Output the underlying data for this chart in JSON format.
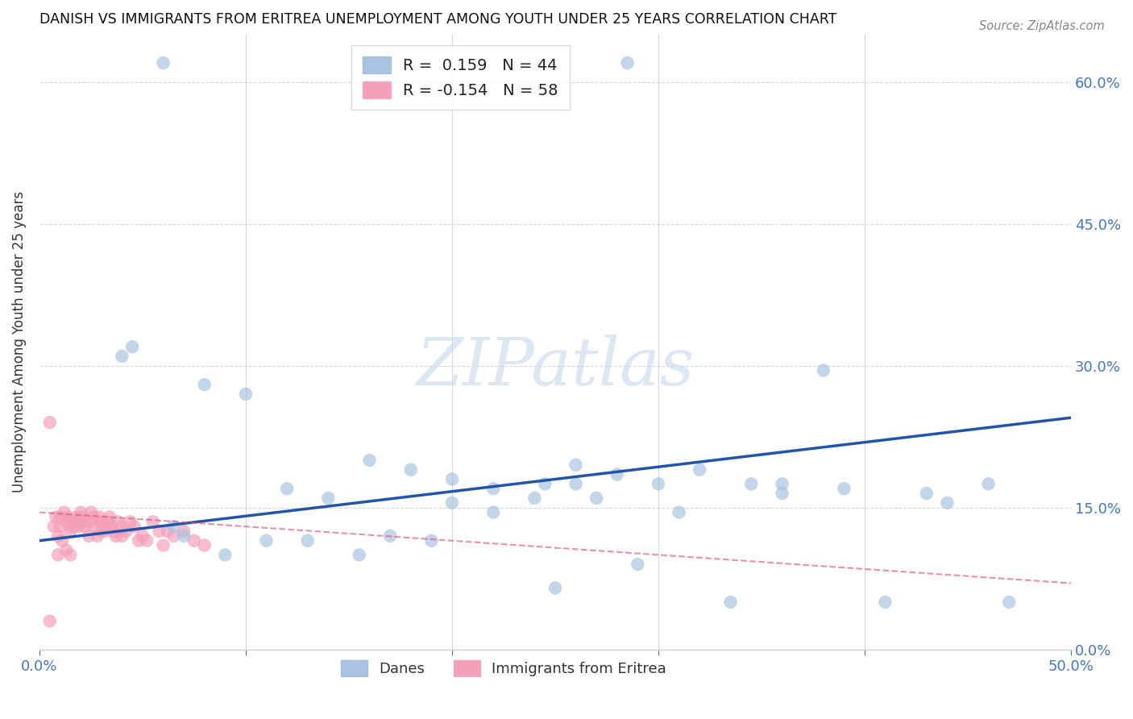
{
  "title": "DANISH VS IMMIGRANTS FROM ERITREA UNEMPLOYMENT AMONG YOUTH UNDER 25 YEARS CORRELATION CHART",
  "source": "Source: ZipAtlas.com",
  "ylabel": "Unemployment Among Youth under 25 years",
  "xlim": [
    0.0,
    0.5
  ],
  "ylim": [
    0.0,
    0.65
  ],
  "xtick_vals": [
    0.0,
    0.1,
    0.2,
    0.3,
    0.4,
    0.5
  ],
  "xtick_labels": [
    "0.0%",
    "",
    "",
    "",
    "",
    "50.0%"
  ],
  "ytick_vals": [
    0.0,
    0.15,
    0.3,
    0.45,
    0.6
  ],
  "ytick_labels_right": [
    "0.0%",
    "15.0%",
    "30.0%",
    "45.0%",
    "60.0%"
  ],
  "background_color": "#ffffff",
  "grid_color": "#cccccc",
  "watermark_text": "ZIPatlas",
  "legend_R1": "0.159",
  "legend_N1": "44",
  "legend_R2": "-0.154",
  "legend_N2": "58",
  "blue_color": "#a8c4e0",
  "pink_color": "#f4a0b8",
  "blue_line_color": "#2255aa",
  "pink_line_color": "#dd5577",
  "danes_x": [
    0.285,
    0.06,
    0.045,
    0.04,
    0.08,
    0.1,
    0.12,
    0.14,
    0.16,
    0.18,
    0.2,
    0.22,
    0.24,
    0.26,
    0.28,
    0.3,
    0.32,
    0.345,
    0.36,
    0.39,
    0.43,
    0.46,
    0.2,
    0.22,
    0.245,
    0.26,
    0.27,
    0.31,
    0.36,
    0.38,
    0.44,
    0.47,
    0.065,
    0.07,
    0.09,
    0.11,
    0.13,
    0.155,
    0.17,
    0.19,
    0.25,
    0.29,
    0.335,
    0.41
  ],
  "danes_y": [
    0.62,
    0.62,
    0.32,
    0.31,
    0.28,
    0.27,
    0.17,
    0.16,
    0.2,
    0.19,
    0.18,
    0.17,
    0.16,
    0.195,
    0.185,
    0.175,
    0.19,
    0.175,
    0.165,
    0.17,
    0.165,
    0.175,
    0.155,
    0.145,
    0.175,
    0.175,
    0.16,
    0.145,
    0.175,
    0.295,
    0.155,
    0.05,
    0.13,
    0.12,
    0.1,
    0.115,
    0.115,
    0.1,
    0.12,
    0.115,
    0.065,
    0.09,
    0.05,
    0.05
  ],
  "eritrea_x": [
    0.005,
    0.005,
    0.007,
    0.008,
    0.009,
    0.01,
    0.01,
    0.012,
    0.013,
    0.014,
    0.015,
    0.015,
    0.016,
    0.017,
    0.018,
    0.019,
    0.02,
    0.02,
    0.021,
    0.022,
    0.023,
    0.024,
    0.025,
    0.025,
    0.026,
    0.027,
    0.028,
    0.029,
    0.03,
    0.03,
    0.031,
    0.032,
    0.033,
    0.034,
    0.035,
    0.036,
    0.037,
    0.038,
    0.04,
    0.04,
    0.042,
    0.044,
    0.046,
    0.048,
    0.05,
    0.052,
    0.055,
    0.058,
    0.06,
    0.062,
    0.065,
    0.07,
    0.075,
    0.08,
    0.009,
    0.011,
    0.013,
    0.015
  ],
  "eritrea_y": [
    0.24,
    0.03,
    0.13,
    0.14,
    0.12,
    0.14,
    0.13,
    0.145,
    0.135,
    0.14,
    0.13,
    0.125,
    0.135,
    0.13,
    0.14,
    0.13,
    0.145,
    0.135,
    0.14,
    0.13,
    0.135,
    0.12,
    0.145,
    0.135,
    0.14,
    0.13,
    0.12,
    0.14,
    0.135,
    0.125,
    0.13,
    0.125,
    0.135,
    0.14,
    0.13,
    0.125,
    0.12,
    0.135,
    0.13,
    0.12,
    0.125,
    0.135,
    0.13,
    0.115,
    0.12,
    0.115,
    0.135,
    0.125,
    0.11,
    0.125,
    0.12,
    0.125,
    0.115,
    0.11,
    0.1,
    0.115,
    0.105,
    0.1
  ],
  "blue_line_x": [
    0.0,
    0.5
  ],
  "blue_line_y": [
    0.115,
    0.245
  ],
  "pink_line_x": [
    0.0,
    0.5
  ],
  "pink_line_y": [
    0.145,
    0.07
  ]
}
